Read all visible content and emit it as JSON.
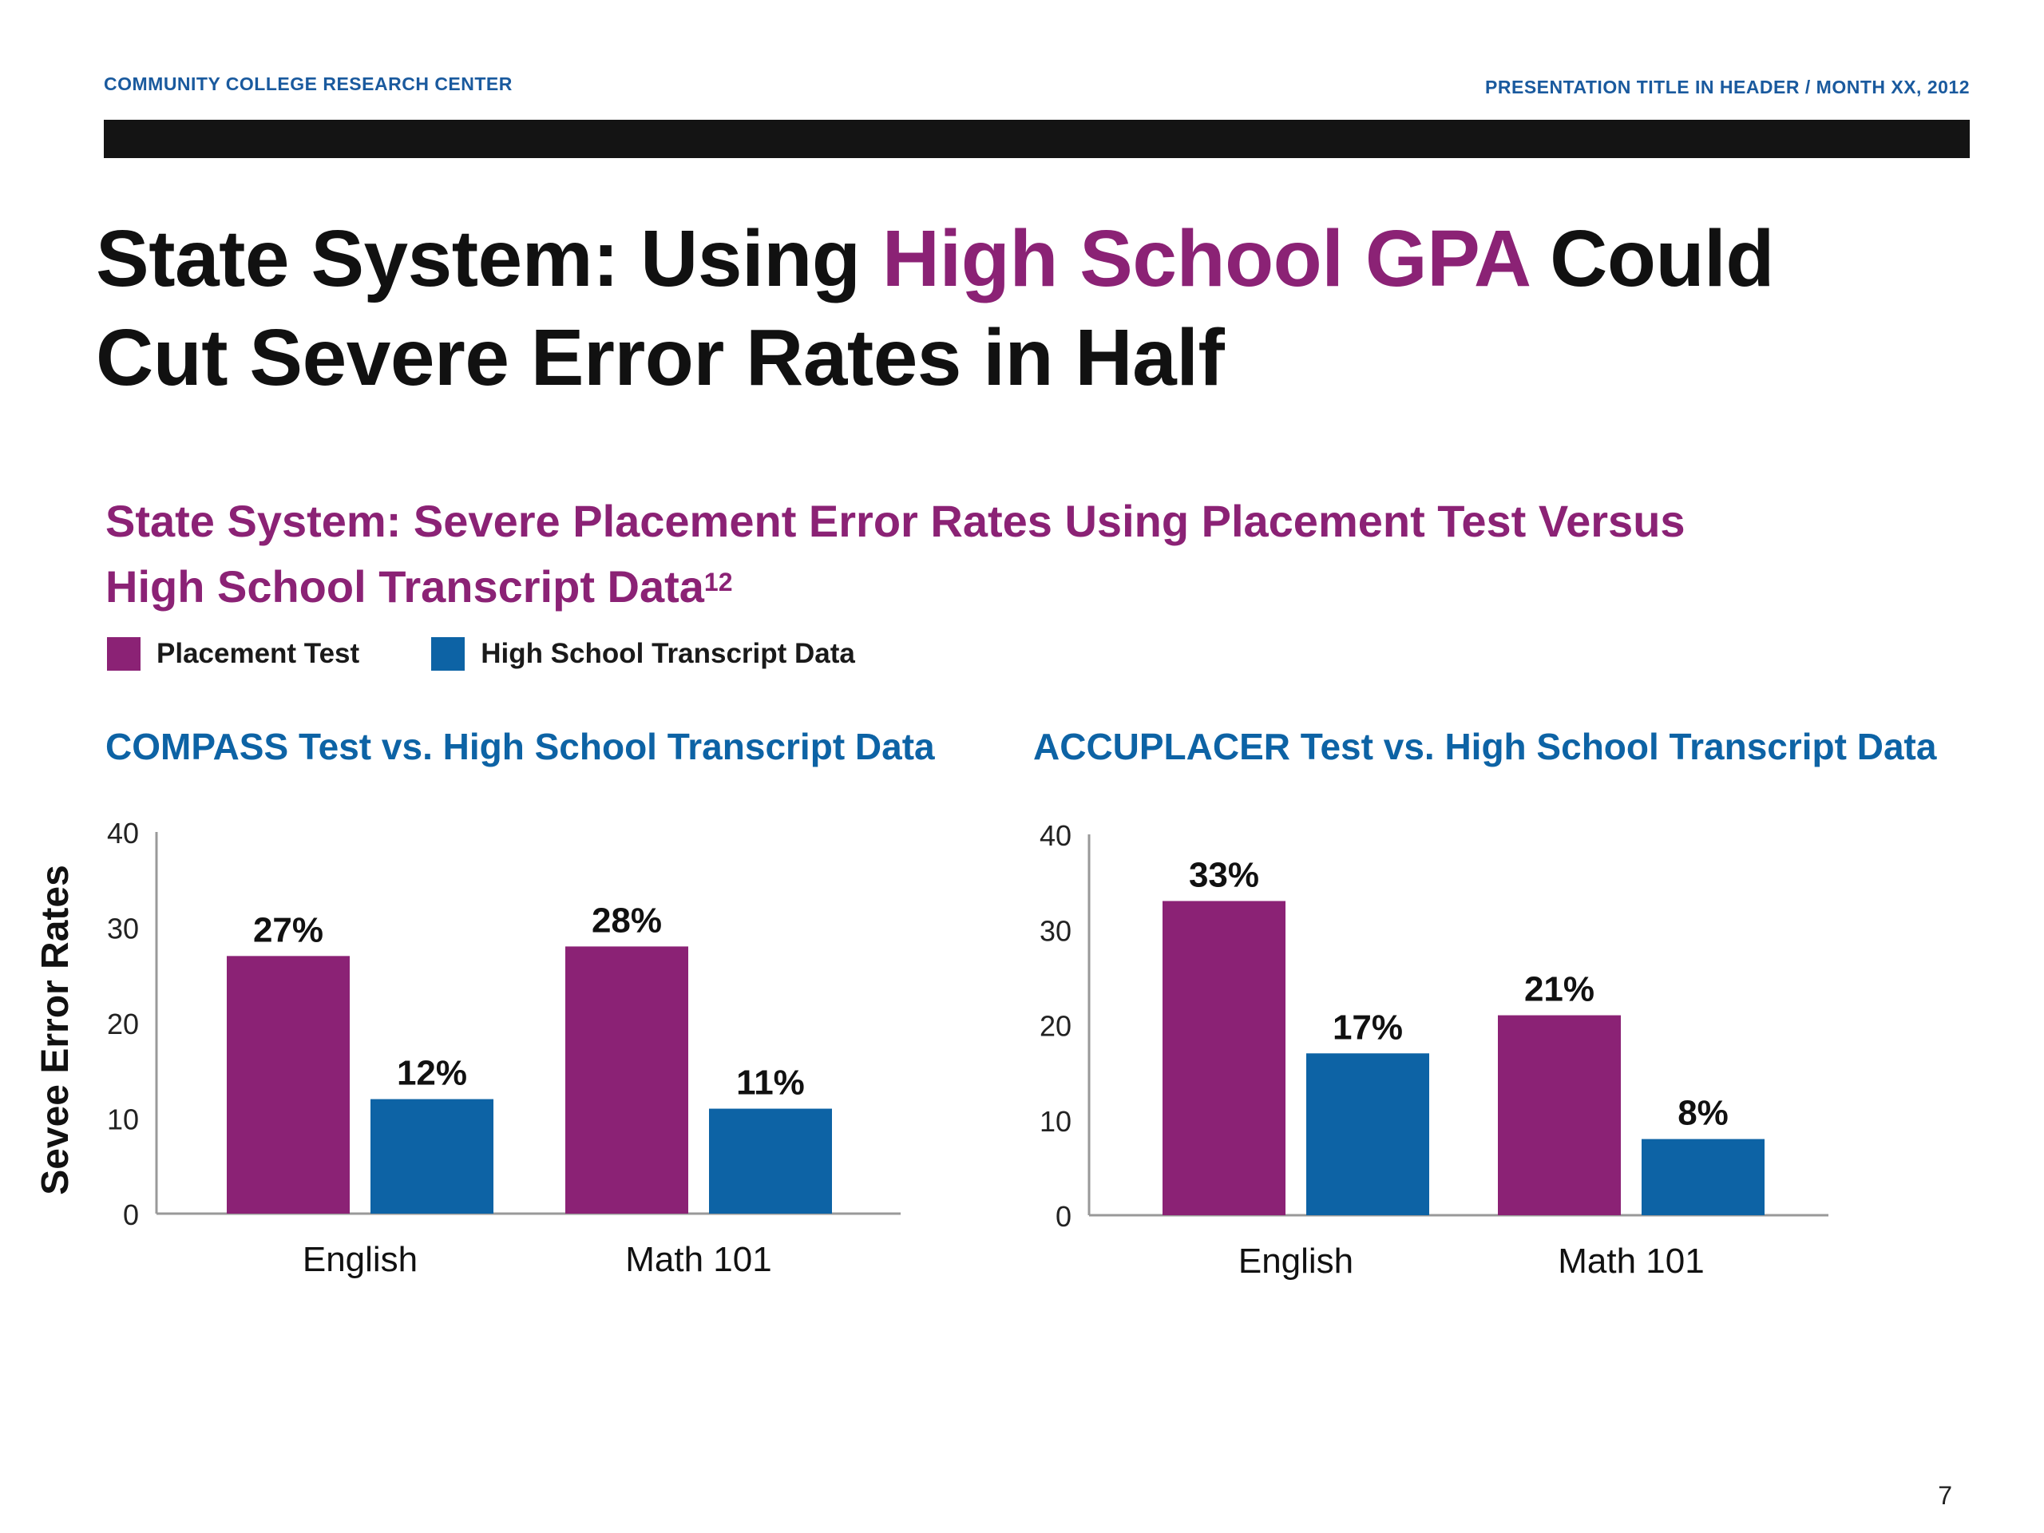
{
  "header": {
    "org": "COMMUNITY COLLEGE RESEARCH CENTER",
    "presentation": "PRESENTATION TITLE IN HEADER / MONTH XX, 2012",
    "color": "#1a5a9e"
  },
  "slide": {
    "title_part1": "State System: Using ",
    "title_highlight": "High School GPA",
    "title_part2": " Could",
    "title_line2": "Cut Severe Error Rates in Half",
    "highlight_color": "#8b2275",
    "subtitle_line1": "State System: Severe Placement Error Rates Using Placement Test Versus",
    "subtitle_line2": "High School Transcript Data",
    "subtitle_footnote": "12",
    "subtitle_color": "#8b2275",
    "y_axis_label": "Sevee Error Rates",
    "page_number": "7"
  },
  "legend": [
    {
      "label": "Placement Test",
      "color": "#8b2275"
    },
    {
      "label": "High School Transcript Data",
      "color": "#0d63a5"
    }
  ],
  "chart_data": [
    {
      "type": "bar",
      "title": "COMPASS Test vs. High School Transcript Data",
      "title_color": "#0d63a5",
      "categories": [
        "English",
        "Math 101"
      ],
      "series": [
        {
          "name": "Placement Test",
          "values": [
            27,
            28
          ],
          "labels": [
            "27%",
            "28%"
          ],
          "color": "#8b2275"
        },
        {
          "name": "High School Transcript Data",
          "values": [
            12,
            11
          ],
          "labels": [
            "12%",
            "11%"
          ],
          "color": "#0d63a5"
        }
      ],
      "ylabel": "Sevee Error Rates",
      "ylim": [
        0,
        40
      ],
      "yticks": [
        0,
        10,
        20,
        30,
        40
      ],
      "grid": false
    },
    {
      "type": "bar",
      "title": "ACCUPLACER Test vs. High School Transcript Data",
      "title_color": "#0d63a5",
      "categories": [
        "English",
        "Math 101"
      ],
      "series": [
        {
          "name": "Placement Test",
          "values": [
            33,
            21
          ],
          "labels": [
            "33%",
            "21%"
          ],
          "color": "#8b2275"
        },
        {
          "name": "High School Transcript Data",
          "values": [
            17,
            8
          ],
          "labels": [
            "17%",
            "8%"
          ],
          "color": "#0d63a5"
        }
      ],
      "ylim": [
        0,
        40
      ],
      "yticks": [
        0,
        10,
        20,
        30,
        40
      ],
      "grid": false
    }
  ]
}
